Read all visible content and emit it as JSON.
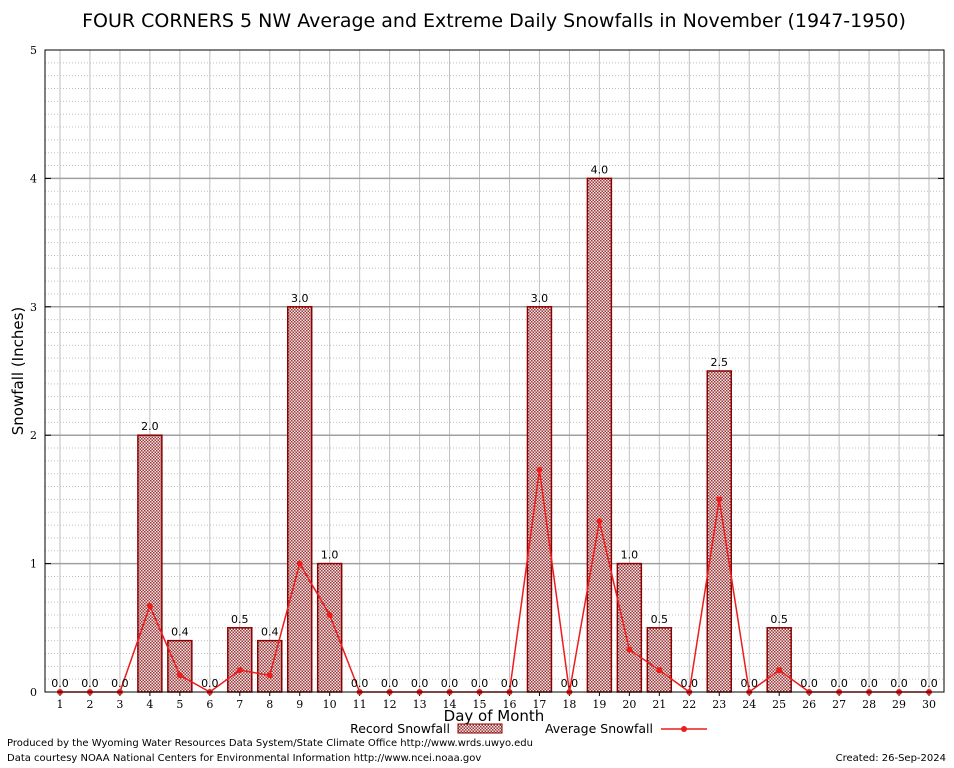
{
  "chart_data": {
    "type": "bar",
    "title": "FOUR CORNERS 5 NW Average and Extreme Daily Snowfalls in November (1947-1950)",
    "xlabel": "Day of Month",
    "ylabel": "Snowfall (Inches)",
    "ylim": [
      0,
      5
    ],
    "yticks": [
      "0",
      "1",
      "2",
      "3",
      "4",
      "5"
    ],
    "categories": [
      "1",
      "2",
      "3",
      "4",
      "5",
      "6",
      "7",
      "8",
      "9",
      "10",
      "11",
      "12",
      "13",
      "14",
      "15",
      "16",
      "17",
      "18",
      "19",
      "20",
      "21",
      "22",
      "23",
      "24",
      "25",
      "26",
      "27",
      "28",
      "29",
      "30"
    ],
    "series": [
      {
        "name": "Record Snowfall",
        "kind": "bar",
        "values": [
          0,
          0,
          0,
          2.0,
          0.4,
          0,
          0.5,
          0.4,
          3.0,
          1.0,
          0,
          0,
          0,
          0,
          0,
          0,
          3.0,
          0,
          4.0,
          1.0,
          0.5,
          0,
          2.5,
          0,
          0.5,
          0,
          0,
          0,
          0,
          0
        ],
        "labels": [
          "0.0",
          "0.0",
          "0.0",
          "2.0",
          "0.4",
          "0.0",
          "0.5",
          "0.4",
          "3.0",
          "1.0",
          "0.0",
          "0.0",
          "0.0",
          "0.0",
          "0.0",
          "0.0",
          "3.0",
          "0.0",
          "4.0",
          "1.0",
          "0.5",
          "0.0",
          "2.5",
          "0.0",
          "0.5",
          "0.0",
          "0.0",
          "0.0",
          "0.0",
          "0.0"
        ]
      },
      {
        "name": "Average Snowfall",
        "kind": "line",
        "values": [
          0,
          0,
          0,
          0.67,
          0.13,
          0,
          0.17,
          0.13,
          1.0,
          0.6,
          0,
          0,
          0,
          0,
          0,
          0,
          1.73,
          0,
          1.33,
          0.33,
          0.17,
          0,
          1.5,
          0,
          0.17,
          0,
          0,
          0,
          0,
          0
        ]
      }
    ],
    "legend": [
      "Record Snowfall",
      "Average Snowfall"
    ],
    "legend_position": "bottom-center",
    "grid": true,
    "colors": {
      "bar_fill": "#c9a9a9",
      "bar_edge": "#8b0000",
      "line": "#ee1c1c",
      "grid": "#c0c0c0"
    }
  },
  "footer": {
    "producer": "Produced by the Wyoming Water Resources Data System/State Climate Office http://www.wrds.uwyo.edu",
    "source": "Data courtesy NOAA National Centers for Environmental Information http://www.ncei.noaa.gov",
    "created": "Created:  26-Sep-2024"
  }
}
